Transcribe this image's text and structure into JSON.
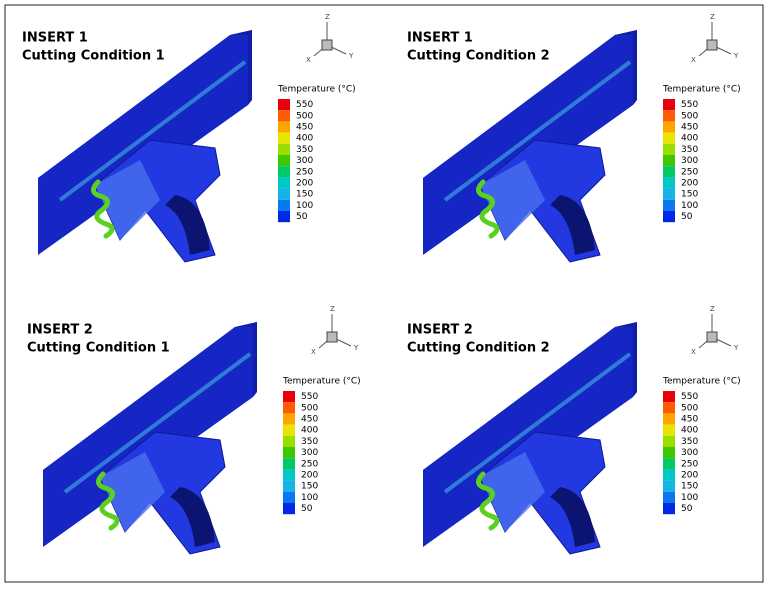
{
  "panels": [
    {
      "title": "INSERT 1",
      "subtitle": "Cutting Condition 1",
      "axes": [
        "Z",
        "X",
        "Y"
      ],
      "legend": {
        "title": "Temperature (°C)",
        "labels": [
          550,
          500,
          450,
          400,
          350,
          300,
          250,
          200,
          150,
          100,
          50
        ]
      }
    },
    {
      "title": "INSERT 1",
      "subtitle": "Cutting Condition 2",
      "axes": [
        "Z",
        "X",
        "Y"
      ],
      "legend": {
        "title": "Temperature (°C)",
        "labels": [
          550,
          500,
          450,
          400,
          350,
          300,
          250,
          200,
          150,
          100,
          50
        ]
      }
    },
    {
      "title": "INSERT 2",
      "subtitle": "Cutting Condition 1",
      "axes": [
        "Z",
        "X",
        "Y"
      ],
      "legend": {
        "title": "Temperature (°C)",
        "labels": [
          550,
          500,
          450,
          400,
          350,
          300,
          250,
          200,
          150,
          100,
          50
        ]
      }
    },
    {
      "title": "INSERT 2",
      "subtitle": "Cutting Condition 2",
      "axes": [
        "Z",
        "X",
        "Y"
      ],
      "legend": {
        "title": "Temperature (°C)",
        "labels": [
          550,
          500,
          450,
          400,
          350,
          300,
          250,
          200,
          150,
          100,
          50
        ]
      }
    }
  ],
  "legend_colors": [
    "#e8000b",
    "#ff5a00",
    "#ffa500",
    "#e6e600",
    "#9ade00",
    "#3ec800",
    "#00c864",
    "#00c8c8",
    "#14b4e6",
    "#0a78f0",
    "#0028e6"
  ]
}
